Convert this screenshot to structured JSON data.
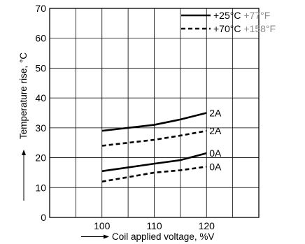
{
  "chart_data": {
    "type": "line",
    "xlabel": "Coil applied voltage, %V",
    "ylabel": "Temperature rise, °C",
    "xlim": [
      90,
      130
    ],
    "ylim": [
      0,
      70
    ],
    "x_ticks": [
      100,
      110,
      120
    ],
    "y_ticks": [
      0,
      10,
      20,
      30,
      40,
      50,
      60,
      70
    ],
    "grid": true,
    "legend_position": "top-right",
    "legend": [
      {
        "style": "solid",
        "label": "+25°C",
        "alt_label": "+77°F"
      },
      {
        "style": "dashed",
        "label": "+70°C",
        "alt_label": "+158°F"
      }
    ],
    "series": [
      {
        "legend_index": 0,
        "curve_label": "2A",
        "style": "solid",
        "x": [
          100,
          110,
          115,
          120
        ],
        "y": [
          29,
          31,
          32.8,
          35
        ]
      },
      {
        "legend_index": 1,
        "curve_label": "2A",
        "style": "dashed",
        "x": [
          100,
          110,
          115,
          120
        ],
        "y": [
          24,
          26,
          27.4,
          29
        ]
      },
      {
        "legend_index": 0,
        "curve_label": "0A",
        "style": "solid",
        "x": [
          100,
          110,
          115,
          120
        ],
        "y": [
          15.5,
          18,
          19.2,
          21.5
        ]
      },
      {
        "legend_index": 1,
        "curve_label": "0A",
        "style": "dashed",
        "x": [
          100,
          110,
          115,
          120
        ],
        "y": [
          12,
          15,
          15.8,
          17
        ]
      }
    ],
    "colors": {
      "line": "#000000",
      "grid": "#000000",
      "alt_label": "#8a8a8a"
    }
  }
}
